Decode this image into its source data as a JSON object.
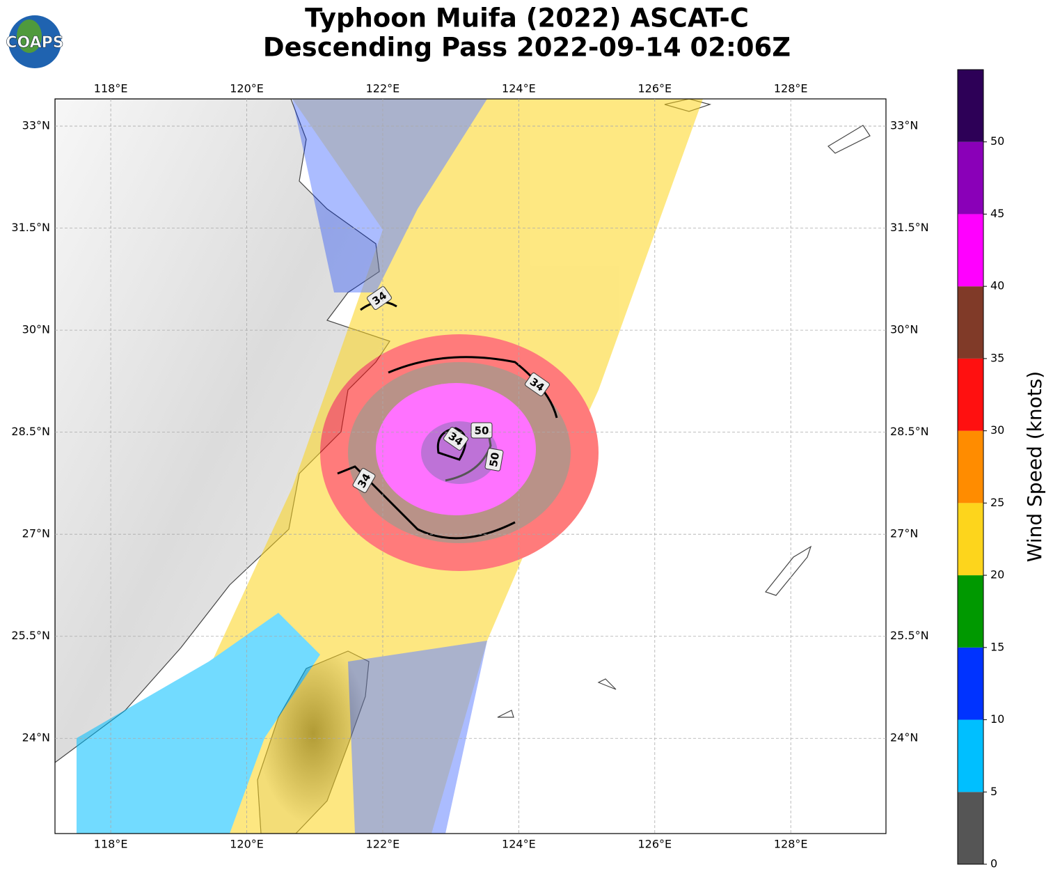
{
  "title": [
    "Typhoon Muifa (2022) ASCAT-C",
    "Descending Pass 2022-09-14 02:06Z"
  ],
  "logo": "COAPS",
  "map": {
    "xlim": [
      117.18,
      129.4
    ],
    "ylim": [
      22.6,
      33.4
    ],
    "xticks": [
      {
        "value": 118,
        "label": "118°E"
      },
      {
        "value": 120,
        "label": "120°E"
      },
      {
        "value": 122,
        "label": "122°E"
      },
      {
        "value": 124,
        "label": "124°E"
      },
      {
        "value": 126,
        "label": "126°E"
      },
      {
        "value": 128,
        "label": "128°E"
      }
    ],
    "yticks": [
      {
        "value": 24,
        "label": "24°N"
      },
      {
        "value": 25.5,
        "label": "25.5°N"
      },
      {
        "value": 27,
        "label": "27°N"
      },
      {
        "value": 28.5,
        "label": "28.5°N"
      },
      {
        "value": 30,
        "label": "30°N"
      },
      {
        "value": 31.5,
        "label": "31.5°N"
      },
      {
        "value": 33,
        "label": "33°N"
      }
    ],
    "grid": true,
    "contour_labels": [
      "34",
      "34",
      "34",
      "34",
      "50",
      "50"
    ]
  },
  "colorbar": {
    "label": "Wind Speed (knots)",
    "lim": [
      0,
      55
    ],
    "bins": [
      0,
      5,
      10,
      15,
      20,
      25,
      30,
      35,
      40,
      45,
      50,
      55
    ],
    "colors": [
      "#555555",
      "#00bfff",
      "#0033ff",
      "#009900",
      "#fdd51c",
      "#ff8c00",
      "#ff1010",
      "#803a28",
      "#ff00ff",
      "#8a00b8",
      "#2d0057"
    ],
    "ticks": [
      0,
      5,
      10,
      15,
      20,
      25,
      30,
      35,
      40,
      45,
      50
    ]
  }
}
